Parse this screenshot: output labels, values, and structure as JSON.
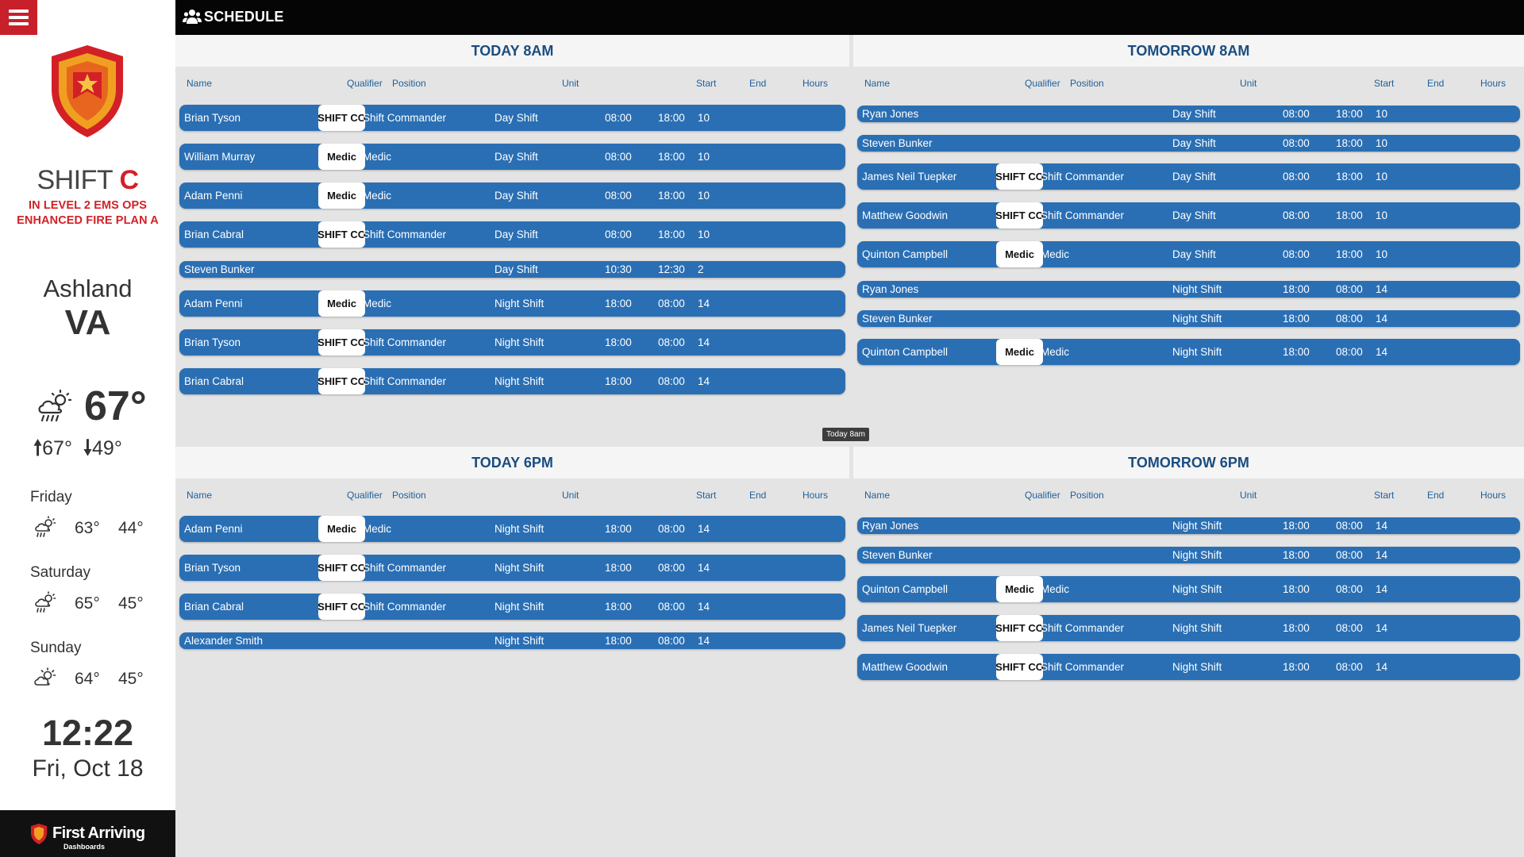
{
  "sidebar": {
    "shift_word": "SHIFT",
    "shift_letter": "C",
    "ops_line1": "IN LEVEL 2 EMS OPS",
    "ops_line2": "ENHANCED FIRE PLAN A",
    "city": "Ashland",
    "state": "VA",
    "weather": {
      "current_icon": "cloud-sun-rain-icon",
      "current_temp": "67°",
      "high": "67°",
      "low": "49°",
      "forecast": [
        {
          "day": "Friday",
          "icon": "cloud-sun-rain-icon",
          "hi": "63°",
          "lo": "44°"
        },
        {
          "day": "Saturday",
          "icon": "cloud-sun-rain-icon",
          "hi": "65°",
          "lo": "45°"
        },
        {
          "day": "Sunday",
          "icon": "cloud-sun-icon",
          "hi": "64°",
          "lo": "45°"
        }
      ]
    },
    "time": "12:22",
    "date": "Fri, Oct 18",
    "brand": {
      "name": "First Arriving",
      "sub": "Dashboards"
    }
  },
  "topbar": {
    "title": "SCHEDULE",
    "icon": "people-icon"
  },
  "columns": {
    "name": "Name",
    "qualifier": "Qualifier",
    "position": "Position",
    "unit": "Unit",
    "start": "Start",
    "end": "End",
    "hours": "Hours"
  },
  "colors": {
    "accent": "#2a6fb4",
    "brand_red": "#d32027",
    "topbar": "#050505"
  },
  "panels": [
    {
      "title": "TODAY 8AM",
      "rows": [
        {
          "name": "Brian Tyson",
          "qualifier": "SHIFT CO",
          "position": "Shift Commander",
          "unit": "Day Shift",
          "start": "08:00",
          "end": "18:00",
          "hours": "10"
        },
        {
          "name": "William Murray",
          "qualifier": "Medic",
          "position": "Medic",
          "unit": "Day Shift",
          "start": "08:00",
          "end": "18:00",
          "hours": "10"
        },
        {
          "name": "Adam Penni",
          "qualifier": "Medic",
          "position": "Medic",
          "unit": "Day Shift",
          "start": "08:00",
          "end": "18:00",
          "hours": "10"
        },
        {
          "name": "Brian Cabral",
          "qualifier": "SHIFT CO",
          "position": "Shift Commander",
          "unit": "Day Shift",
          "start": "08:00",
          "end": "18:00",
          "hours": "10"
        },
        {
          "name": "Steven Bunker",
          "qualifier": "",
          "position": "",
          "unit": "Day Shift",
          "start": "10:30",
          "end": "12:30",
          "hours": "2"
        },
        {
          "name": "Adam Penni",
          "qualifier": "Medic",
          "position": "Medic",
          "unit": "Night Shift",
          "start": "18:00",
          "end": "08:00",
          "hours": "14"
        },
        {
          "name": "Brian Tyson",
          "qualifier": "SHIFT CO",
          "position": "Shift Commander",
          "unit": "Night Shift",
          "start": "18:00",
          "end": "08:00",
          "hours": "14"
        },
        {
          "name": "Brian Cabral",
          "qualifier": "SHIFT CO",
          "position": "Shift Commander",
          "unit": "Night Shift",
          "start": "18:00",
          "end": "08:00",
          "hours": "14"
        }
      ]
    },
    {
      "title": "TOMORROW 8AM",
      "rows": [
        {
          "name": "Ryan Jones",
          "qualifier": "",
          "position": "",
          "unit": "Day Shift",
          "start": "08:00",
          "end": "18:00",
          "hours": "10"
        },
        {
          "name": "Steven Bunker",
          "qualifier": "",
          "position": "",
          "unit": "Day Shift",
          "start": "08:00",
          "end": "18:00",
          "hours": "10"
        },
        {
          "name": "James Neil Tuepker",
          "qualifier": "SHIFT CO",
          "position": "Shift Commander",
          "unit": "Day Shift",
          "start": "08:00",
          "end": "18:00",
          "hours": "10"
        },
        {
          "name": "Matthew Goodwin",
          "qualifier": "SHIFT CO",
          "position": "Shift Commander",
          "unit": "Day Shift",
          "start": "08:00",
          "end": "18:00",
          "hours": "10"
        },
        {
          "name": "Quinton Campbell",
          "qualifier": "Medic",
          "position": "Medic",
          "unit": "Day Shift",
          "start": "08:00",
          "end": "18:00",
          "hours": "10"
        },
        {
          "name": "Ryan Jones",
          "qualifier": "",
          "position": "",
          "unit": "Night Shift",
          "start": "18:00",
          "end": "08:00",
          "hours": "14"
        },
        {
          "name": "Steven Bunker",
          "qualifier": "",
          "position": "",
          "unit": "Night Shift",
          "start": "18:00",
          "end": "08:00",
          "hours": "14"
        },
        {
          "name": "Quinton Campbell",
          "qualifier": "Medic",
          "position": "Medic",
          "unit": "Night Shift",
          "start": "18:00",
          "end": "08:00",
          "hours": "14"
        }
      ]
    },
    {
      "title": "TODAY 6PM",
      "rows": [
        {
          "name": "Adam Penni",
          "qualifier": "Medic",
          "position": "Medic",
          "unit": "Night Shift",
          "start": "18:00",
          "end": "08:00",
          "hours": "14"
        },
        {
          "name": "Brian Tyson",
          "qualifier": "SHIFT CO",
          "position": "Shift Commander",
          "unit": "Night Shift",
          "start": "18:00",
          "end": "08:00",
          "hours": "14"
        },
        {
          "name": "Brian Cabral",
          "qualifier": "SHIFT CO",
          "position": "Shift Commander",
          "unit": "Night Shift",
          "start": "18:00",
          "end": "08:00",
          "hours": "14"
        },
        {
          "name": "Alexander Smith",
          "qualifier": "",
          "position": "",
          "unit": "Night Shift",
          "start": "18:00",
          "end": "08:00",
          "hours": "14"
        }
      ]
    },
    {
      "title": "TOMORROW 6PM",
      "rows": [
        {
          "name": "Ryan Jones",
          "qualifier": "",
          "position": "",
          "unit": "Night Shift",
          "start": "18:00",
          "end": "08:00",
          "hours": "14"
        },
        {
          "name": "Steven Bunker",
          "qualifier": "",
          "position": "",
          "unit": "Night Shift",
          "start": "18:00",
          "end": "08:00",
          "hours": "14"
        },
        {
          "name": "Quinton Campbell",
          "qualifier": "Medic",
          "position": "Medic",
          "unit": "Night Shift",
          "start": "18:00",
          "end": "08:00",
          "hours": "14"
        },
        {
          "name": "James Neil Tuepker",
          "qualifier": "SHIFT CO",
          "position": "Shift Commander",
          "unit": "Night Shift",
          "start": "18:00",
          "end": "08:00",
          "hours": "14"
        },
        {
          "name": "Matthew Goodwin",
          "qualifier": "SHIFT CO",
          "position": "Shift Commander",
          "unit": "Night Shift",
          "start": "18:00",
          "end": "08:00",
          "hours": "14"
        }
      ]
    }
  ],
  "tooltip": "Today 8am"
}
